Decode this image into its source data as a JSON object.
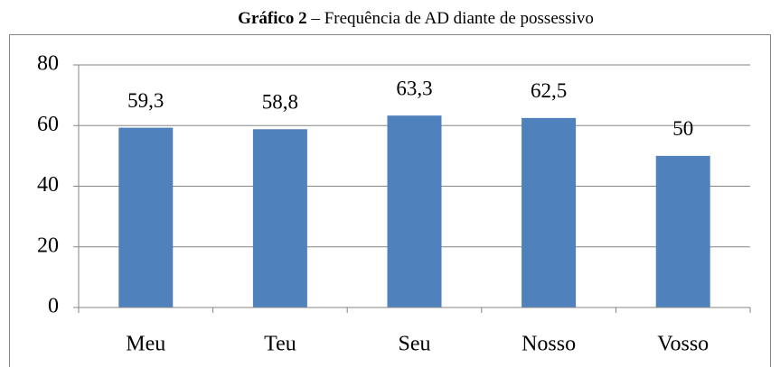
{
  "chart_data": {
    "type": "bar",
    "title": [
      "Gráfico 2",
      "– Frequência de AD diante de possessivo"
    ],
    "categories": [
      "Meu",
      "Teu",
      "Seu",
      "Nosso",
      "Vosso"
    ],
    "values": [
      59.3,
      58.8,
      63.3,
      62.5,
      50
    ],
    "value_labels": [
      "59,3",
      "58,8",
      "63,3",
      "62,5",
      "50"
    ],
    "color": "#4f81bd",
    "ylim": [
      0,
      80
    ],
    "yticks": [
      0,
      20,
      40,
      60,
      80
    ],
    "grid": true
  }
}
